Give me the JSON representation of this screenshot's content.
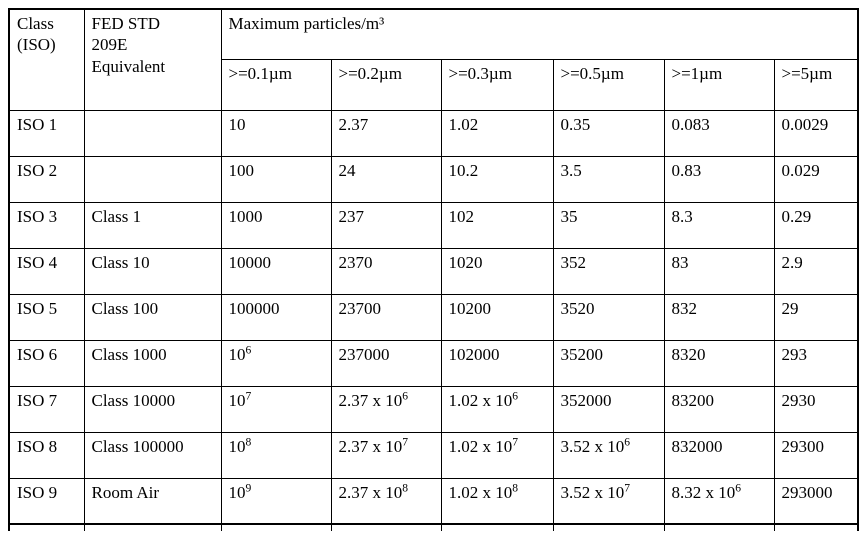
{
  "table": {
    "header": {
      "class_iso": "Class\n(ISO)",
      "fed_std": "FED STD\n209E\nEquivalent",
      "max_particles": "Maximum particles/m³",
      "size_columns": [
        ">=0.1µm",
        ">=0.2µm",
        ">=0.3µm",
        ">=0.5µm",
        ">=1µm",
        ">=5µm"
      ]
    },
    "rows": [
      {
        "class_iso": "ISO 1",
        "fed_std": "",
        "values": [
          "10",
          "2.37",
          "1.02",
          "0.35",
          "0.083",
          "0.0029"
        ]
      },
      {
        "class_iso": "ISO 2",
        "fed_std": "",
        "values": [
          "100",
          "24",
          "10.2",
          "3.5",
          "0.83",
          "0.029"
        ]
      },
      {
        "class_iso": "ISO 3",
        "fed_std": "Class 1",
        "values": [
          "1000",
          "237",
          "102",
          "35",
          "8.3",
          "0.29"
        ]
      },
      {
        "class_iso": "ISO 4",
        "fed_std": "Class 10",
        "values": [
          "10000",
          "2370",
          "1020",
          "352",
          "83",
          "2.9"
        ]
      },
      {
        "class_iso": "ISO 5",
        "fed_std": "Class 100",
        "values": [
          "100000",
          "23700",
          "10200",
          "3520",
          "832",
          "29"
        ]
      },
      {
        "class_iso": "ISO 6",
        "fed_std": "Class 1000",
        "values": [
          "10^6",
          "237000",
          "102000",
          "35200",
          "8320",
          "293"
        ]
      },
      {
        "class_iso": "ISO 7",
        "fed_std": "Class 10000",
        "values": [
          "10^7",
          "2.37 x 10^6",
          "1.02 x 10^6",
          "352000",
          "83200",
          "2930"
        ]
      },
      {
        "class_iso": "ISO 8",
        "fed_std": "Class 100000",
        "values": [
          "10^8",
          "2.37 x 10^7",
          "1.02 x 10^7",
          "3.52 x 10^6",
          "832000",
          "29300"
        ]
      },
      {
        "class_iso": "ISO 9",
        "fed_std": "Room Air",
        "values": [
          "10^9",
          "2.37 x 10^8",
          "1.02 x 10^8",
          "3.52 x 10^7",
          "8.32 x 10^6",
          "293000"
        ]
      }
    ]
  }
}
